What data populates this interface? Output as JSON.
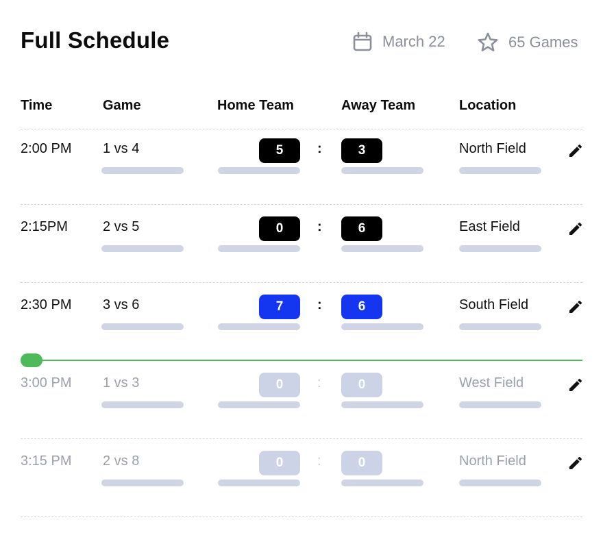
{
  "header": {
    "title": "Full Schedule",
    "date": "March 22",
    "games_count": "65 Games",
    "date_icon": "calendar-icon",
    "count_icon": "star-icon"
  },
  "columns": {
    "time": "Time",
    "game": "Game",
    "home": "Home Team",
    "away": "Away Team",
    "location": "Location"
  },
  "separator": ":",
  "colors": {
    "played_score": "#000000",
    "live_score": "#1536f0",
    "future_score": "#ccd3e6",
    "now_indicator": "#4fba5a"
  },
  "games": [
    {
      "time": "2:00 PM",
      "game": "1 vs 4",
      "home": "5",
      "away": "3",
      "location": "North Field",
      "state": "played"
    },
    {
      "time": "2:15PM",
      "game": "2 vs 5",
      "home": "0",
      "away": "6",
      "location": "East Field",
      "state": "played"
    },
    {
      "time": "2:30 PM",
      "game": "3 vs 6",
      "home": "7",
      "away": "6",
      "location": "South Field",
      "state": "live"
    },
    {
      "time": "3:00 PM",
      "game": "1 vs 3",
      "home": "0",
      "away": "0",
      "location": "West Field",
      "state": "future"
    },
    {
      "time": "3:15 PM",
      "game": "2 vs 8",
      "home": "0",
      "away": "0",
      "location": "North Field",
      "state": "future"
    }
  ]
}
